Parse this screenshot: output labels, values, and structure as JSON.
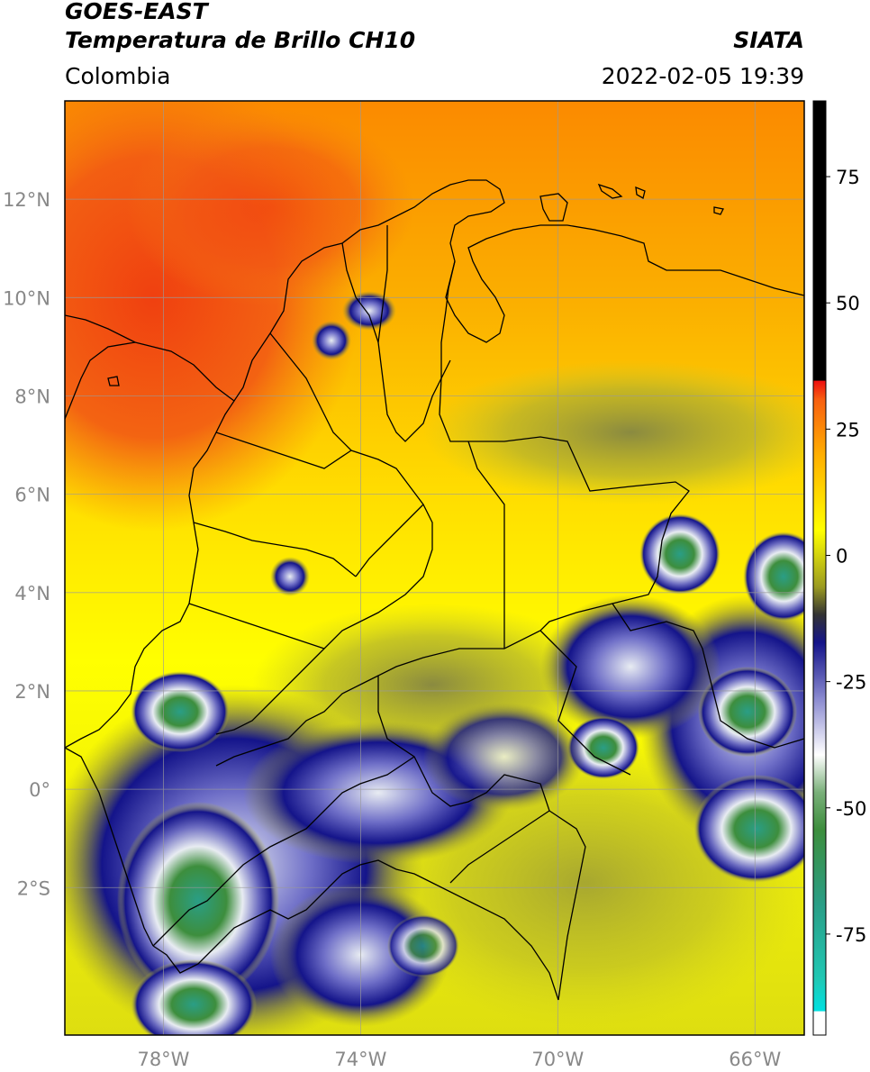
{
  "header": {
    "title_line1": "GOES-EAST",
    "title_line2": "Temperatura de Brillo CH10",
    "subtitle": "Colombia",
    "organization": "SIATA",
    "timestamp": "2022-02-05 19:39"
  },
  "map": {
    "lon_range": [
      -80,
      -65
    ],
    "lat_range": [
      -5,
      14
    ],
    "lat_ticks": [
      {
        "value": 12,
        "label": "12°N"
      },
      {
        "value": 10,
        "label": "10°N"
      },
      {
        "value": 8,
        "label": "8°N"
      },
      {
        "value": 6,
        "label": "6°N"
      },
      {
        "value": 4,
        "label": "4°N"
      },
      {
        "value": 2,
        "label": "2°N"
      },
      {
        "value": 0,
        "label": "0°"
      },
      {
        "value": -2,
        "label": "2°S"
      }
    ],
    "lon_ticks": [
      {
        "value": -78,
        "label": "78°W"
      },
      {
        "value": -74,
        "label": "74°W"
      },
      {
        "value": -70,
        "label": "70°W"
      },
      {
        "value": -66,
        "label": "66°W"
      }
    ],
    "grid": true,
    "colors": {
      "warm_red": "#f04a10",
      "orange": "#fb9400",
      "yellow": "#ffff00",
      "olive": "#c9c92a",
      "navy": "#14148a",
      "white_cloud": "#e8ecf2",
      "cloud_green": "#3d8e3d",
      "teal": "#2db09a"
    }
  },
  "colorbar": {
    "range": [
      -95,
      90
    ],
    "ticks": [
      {
        "value": 75,
        "label": "75"
      },
      {
        "value": 50,
        "label": "50"
      },
      {
        "value": 25,
        "label": "25"
      },
      {
        "value": 0,
        "label": "0"
      },
      {
        "value": -25,
        "label": "-25"
      },
      {
        "value": -50,
        "label": "-50"
      },
      {
        "value": -75,
        "label": "-75"
      }
    ]
  }
}
